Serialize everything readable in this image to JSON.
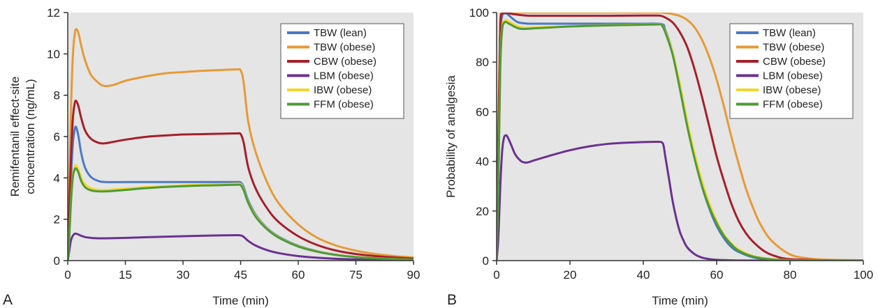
{
  "style": {
    "plot_background": "#e5e5e5",
    "axis_color": "#333333",
    "series_colors": {
      "tbw_lean": "#4a79c4",
      "tbw_obese": "#e69a36",
      "cbw_obese": "#a61f2a",
      "lbm_obese": "#6a3290",
      "ibw_obese": "#f2d630",
      "ffm_obese": "#4e9a37"
    }
  },
  "chart_data": [
    {
      "type": "line",
      "panel_label": "A",
      "title": "",
      "xlabel": "Time (min)",
      "ylabel": "Remifentanil effect-site concentration (ng/mL)",
      "ylabel_lines": [
        "Remifentanil effect-site",
        "concentration (ng/mL)"
      ],
      "xlim": [
        0,
        90
      ],
      "ylim": [
        0,
        12
      ],
      "xticks": [
        0,
        15,
        30,
        45,
        60,
        75,
        90
      ],
      "yticks": [
        0,
        2,
        4,
        6,
        8,
        10,
        12
      ],
      "grid": false,
      "legend_position": "top-right",
      "series": [
        {
          "name": "TBW (lean)",
          "color_key": "tbw_lean",
          "x": [
            0,
            0.3,
            0.8,
            1.3,
            1.8,
            2.2,
            2.8,
            3.5,
            4.5,
            6,
            8,
            10,
            15,
            20,
            30,
            40,
            44,
            45,
            45.8,
            47,
            49,
            52,
            55,
            60,
            65,
            70,
            75,
            80,
            85,
            90
          ],
          "y": [
            0,
            1.2,
            3.8,
            5.6,
            6.35,
            6.45,
            6.0,
            5.2,
            4.5,
            4.05,
            3.85,
            3.8,
            3.8,
            3.8,
            3.8,
            3.8,
            3.8,
            3.78,
            3.55,
            2.9,
            2.2,
            1.55,
            1.15,
            0.72,
            0.45,
            0.28,
            0.18,
            0.12,
            0.08,
            0.05
          ]
        },
        {
          "name": "TBW (obese)",
          "color_key": "tbw_obese",
          "x": [
            0,
            0.3,
            0.8,
            1.3,
            1.8,
            2.2,
            2.8,
            3.5,
            4.5,
            6,
            8,
            9.5,
            12,
            15,
            20,
            25,
            30,
            35,
            40,
            44,
            45,
            45.8,
            47,
            49,
            52,
            55,
            60,
            65,
            70,
            75,
            80,
            85,
            90
          ],
          "y": [
            0,
            2.5,
            7.0,
            9.8,
            10.95,
            11.2,
            11.0,
            10.4,
            9.7,
            9.0,
            8.6,
            8.45,
            8.5,
            8.7,
            8.9,
            9.05,
            9.12,
            9.18,
            9.22,
            9.25,
            9.2,
            8.6,
            6.7,
            5.2,
            3.75,
            2.75,
            1.75,
            1.1,
            0.72,
            0.48,
            0.32,
            0.22,
            0.15
          ]
        },
        {
          "name": "CBW (obese)",
          "color_key": "cbw_obese",
          "x": [
            0,
            0.3,
            0.8,
            1.3,
            1.8,
            2.2,
            2.8,
            3.5,
            4.5,
            6,
            8,
            9.5,
            12,
            15,
            20,
            25,
            30,
            35,
            40,
            44,
            45,
            45.8,
            47,
            49,
            52,
            55,
            60,
            65,
            70,
            75,
            80,
            85,
            90
          ],
          "y": [
            0,
            1.7,
            4.8,
            6.8,
            7.6,
            7.72,
            7.45,
            6.9,
            6.3,
            5.9,
            5.7,
            5.67,
            5.75,
            5.85,
            5.98,
            6.05,
            6.1,
            6.12,
            6.14,
            6.15,
            6.12,
            5.7,
            4.5,
            3.45,
            2.5,
            1.85,
            1.18,
            0.75,
            0.48,
            0.32,
            0.22,
            0.15,
            0.1
          ]
        },
        {
          "name": "LBM (obese)",
          "color_key": "lbm_obese",
          "x": [
            0,
            0.3,
            0.8,
            1.3,
            1.8,
            2.2,
            2.8,
            3.5,
            4.5,
            6,
            8,
            10,
            15,
            20,
            30,
            40,
            44,
            45,
            45.8,
            47,
            49,
            52,
            55,
            60,
            65,
            70,
            75,
            80,
            85,
            90
          ],
          "y": [
            0,
            0.35,
            0.95,
            1.2,
            1.3,
            1.3,
            1.26,
            1.2,
            1.14,
            1.1,
            1.08,
            1.08,
            1.1,
            1.13,
            1.18,
            1.22,
            1.23,
            1.22,
            1.15,
            0.95,
            0.72,
            0.5,
            0.36,
            0.22,
            0.14,
            0.09,
            0.06,
            0.04,
            0.03,
            0.02
          ]
        },
        {
          "name": "IBW (obese)",
          "color_key": "ibw_obese",
          "x": [
            0,
            0.3,
            0.8,
            1.3,
            1.8,
            2.2,
            2.8,
            3.5,
            4.5,
            6,
            8,
            10,
            15,
            20,
            25,
            30,
            35,
            40,
            44,
            45,
            45.8,
            47,
            49,
            52,
            55,
            60,
            65,
            70,
            75,
            80,
            85,
            90
          ],
          "y": [
            0,
            0.8,
            2.8,
            4.1,
            4.55,
            4.6,
            4.4,
            4.0,
            3.7,
            3.5,
            3.42,
            3.42,
            3.48,
            3.55,
            3.6,
            3.64,
            3.67,
            3.7,
            3.72,
            3.7,
            3.45,
            2.82,
            2.15,
            1.52,
            1.12,
            0.7,
            0.44,
            0.28,
            0.18,
            0.12,
            0.08,
            0.05
          ]
        },
        {
          "name": "FFM (obese)",
          "color_key": "ffm_obese",
          "x": [
            0,
            0.3,
            0.8,
            1.3,
            1.8,
            2.2,
            2.8,
            3.5,
            4.5,
            6,
            8,
            10,
            15,
            20,
            25,
            30,
            35,
            40,
            44,
            45,
            45.8,
            47,
            49,
            52,
            55,
            60,
            65,
            70,
            75,
            80,
            85,
            90
          ],
          "y": [
            0,
            0.75,
            2.7,
            4.0,
            4.4,
            4.45,
            4.25,
            3.85,
            3.55,
            3.4,
            3.35,
            3.35,
            3.42,
            3.5,
            3.56,
            3.6,
            3.63,
            3.65,
            3.67,
            3.65,
            3.4,
            2.78,
            2.1,
            1.5,
            1.1,
            0.68,
            0.43,
            0.27,
            0.17,
            0.11,
            0.07,
            0.05
          ]
        }
      ]
    },
    {
      "type": "line",
      "panel_label": "B",
      "title": "",
      "xlabel": "Time (min)",
      "ylabel": "Probability of analgesia",
      "ylabel_lines": [
        "Probability of analgesia"
      ],
      "xlim": [
        0,
        100
      ],
      "ylim": [
        0,
        100
      ],
      "xticks": [
        0,
        20,
        40,
        60,
        80,
        100
      ],
      "yticks": [
        0,
        20,
        40,
        60,
        80,
        100
      ],
      "grid": false,
      "legend_position": "top-right",
      "series": [
        {
          "name": "TBW (lean)",
          "color_key": "tbw_lean",
          "x": [
            0,
            0.5,
            1,
            1.5,
            2,
            2.5,
            3,
            4,
            5,
            6,
            8,
            10,
            20,
            30,
            40,
            45,
            46,
            48,
            50,
            52,
            54,
            56,
            58,
            60,
            62,
            64,
            66,
            70,
            75,
            80,
            90,
            100
          ],
          "y": [
            0,
            45,
            90,
            98.5,
            99.5,
            99.7,
            99.3,
            98,
            96.8,
            96,
            95.6,
            95.5,
            95.5,
            95.5,
            95.5,
            95.3,
            93,
            84,
            70,
            55,
            42,
            30,
            21,
            14,
            9,
            5.5,
            3.5,
            1.3,
            0.4,
            0.15,
            0.05,
            0.02
          ]
        },
        {
          "name": "TBW (obese)",
          "color_key": "tbw_obese",
          "x": [
            0,
            0.5,
            1,
            1.5,
            2,
            3,
            5,
            8,
            10,
            20,
            30,
            40,
            44,
            45,
            46,
            48,
            50,
            52,
            54,
            56,
            58,
            60,
            62,
            64,
            66,
            68,
            70,
            72,
            75,
            80,
            85,
            90,
            100
          ],
          "y": [
            0,
            55,
            96,
            99.8,
            100,
            100,
            100,
            100,
            100,
            100,
            100,
            100,
            100,
            100,
            99.8,
            99.4,
            98.6,
            97,
            94,
            89,
            82,
            73,
            62,
            50,
            39,
            29,
            21,
            14.5,
            8,
            2.5,
            0.9,
            0.4,
            0.1
          ]
        },
        {
          "name": "CBW (obese)",
          "color_key": "cbw_obese",
          "x": [
            0,
            0.5,
            1,
            1.5,
            2,
            3,
            4,
            6,
            8,
            10,
            20,
            30,
            40,
            44,
            45,
            46,
            48,
            50,
            52,
            54,
            56,
            58,
            60,
            62,
            64,
            66,
            68,
            70,
            73,
            76,
            80,
            90,
            100
          ],
          "y": [
            0,
            52,
            94,
            99.5,
            99.9,
            99.8,
            99.5,
            99.1,
            98.8,
            98.7,
            98.7,
            98.7,
            98.8,
            98.8,
            98.6,
            98,
            96,
            92,
            86,
            77,
            66,
            54,
            42,
            32,
            23,
            16,
            11,
            7.5,
            3.8,
            1.8,
            0.6,
            0.1,
            0.02
          ]
        },
        {
          "name": "LBM (obese)",
          "color_key": "lbm_obese",
          "x": [
            0,
            0.5,
            1,
            1.5,
            2,
            2.5,
            3,
            4,
            5,
            6,
            7,
            8,
            9,
            10,
            15,
            20,
            25,
            30,
            35,
            40,
            44,
            45,
            45.5,
            46,
            47,
            48,
            49,
            50,
            51,
            52,
            54,
            56,
            58,
            60,
            65,
            70,
            80,
            100
          ],
          "y": [
            0,
            10,
            30,
            44,
            49.5,
            50.5,
            49.8,
            46.5,
            43,
            41,
            39.8,
            39.5,
            39.8,
            40.3,
            42.5,
            44.5,
            46,
            47,
            47.5,
            47.8,
            47.9,
            47.7,
            46.5,
            42,
            33,
            24,
            17,
            11.5,
            8,
            5.3,
            2.6,
            1.2,
            0.6,
            0.3,
            0.08,
            0.02,
            0,
            0
          ]
        },
        {
          "name": "IBW (obese)",
          "color_key": "ibw_obese",
          "x": [
            0,
            0.5,
            1,
            1.5,
            2,
            2.5,
            3,
            4,
            5,
            6,
            7,
            8,
            10,
            15,
            20,
            30,
            40,
            44,
            45,
            46,
            48,
            50,
            52,
            54,
            56,
            58,
            60,
            62,
            64,
            66,
            70,
            75,
            80,
            90,
            100
          ],
          "y": [
            0,
            35,
            80,
            94,
            96.5,
            97,
            96.6,
            95.8,
            95,
            94.3,
            94,
            93.9,
            94,
            94.2,
            94.5,
            94.9,
            95.2,
            95.3,
            95.1,
            92.5,
            84,
            71,
            56,
            43,
            32,
            23,
            16,
            10.5,
            7,
            4.5,
            1.8,
            0.6,
            0.2,
            0.05,
            0.01
          ]
        },
        {
          "name": "FFM (obese)",
          "color_key": "ffm_obese",
          "x": [
            0,
            0.5,
            1,
            1.5,
            2,
            2.5,
            3,
            4,
            5,
            6,
            7,
            8,
            10,
            15,
            20,
            30,
            40,
            44,
            45,
            46,
            48,
            50,
            52,
            54,
            56,
            58,
            60,
            62,
            64,
            66,
            70,
            75,
            80,
            90,
            100
          ],
          "y": [
            0,
            33,
            78,
            93,
            95.8,
            96.2,
            95.8,
            95,
            94.2,
            93.6,
            93.4,
            93.4,
            93.6,
            94,
            94.4,
            94.8,
            95.1,
            95.2,
            95,
            92,
            83,
            69,
            54,
            41,
            30,
            21.5,
            15,
            10,
            6.5,
            4,
            1.6,
            0.5,
            0.15,
            0.04,
            0.01
          ]
        }
      ]
    }
  ]
}
